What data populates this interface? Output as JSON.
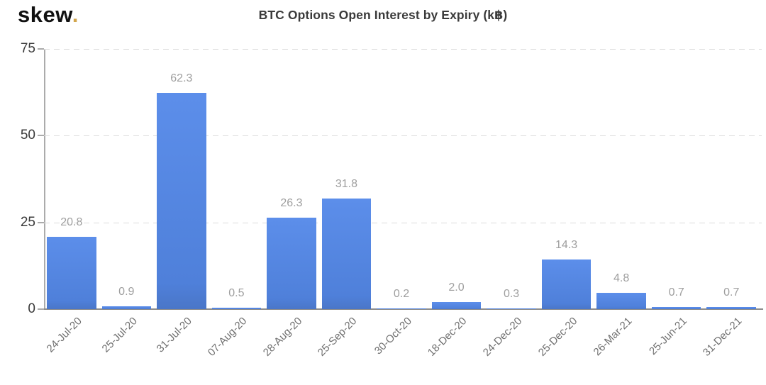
{
  "logo": {
    "text": "skew",
    "dot": "."
  },
  "chart_data": {
    "type": "bar",
    "title": "BTC Options Open Interest by Expiry (k฿)",
    "categories": [
      "24-Jul-20",
      "25-Jul-20",
      "31-Jul-20",
      "07-Aug-20",
      "28-Aug-20",
      "25-Sep-20",
      "30-Oct-20",
      "18-Dec-20",
      "24-Dec-20",
      "25-Dec-20",
      "26-Mar-21",
      "25-Jun-21",
      "31-Dec-21"
    ],
    "values": [
      20.8,
      0.9,
      62.3,
      0.5,
      26.3,
      31.8,
      0.2,
      2.0,
      0.3,
      14.3,
      4.8,
      0.7,
      0.7
    ],
    "value_labels": [
      "20.8",
      "0.9",
      "62.3",
      "0.5",
      "26.3",
      "31.8",
      "0.2",
      "2.0",
      "0.3",
      "14.3",
      "4.8",
      "0.7",
      "0.7"
    ],
    "xlabel": "",
    "ylabel": "",
    "ylim": [
      0,
      75
    ],
    "yticks": [
      0,
      25,
      50,
      75
    ],
    "grid": "dashed horizontal",
    "legend": false
  },
  "colors": {
    "bar_top": "#5c8eea",
    "bar_bottom": "#4f80da",
    "bar_edge": "#4a76c8",
    "logo_text": "#111111",
    "logo_dot": "#d2a64c",
    "title": "#3b3b3b",
    "ytick_label": "#3a3a3a",
    "value_label": "#9e9e9e",
    "x_label": "#6f6f6f",
    "gridline": "#dcdcdc",
    "axis_line": "#ababab",
    "baseline": "#8c8c8c",
    "background": "#ffffff"
  }
}
